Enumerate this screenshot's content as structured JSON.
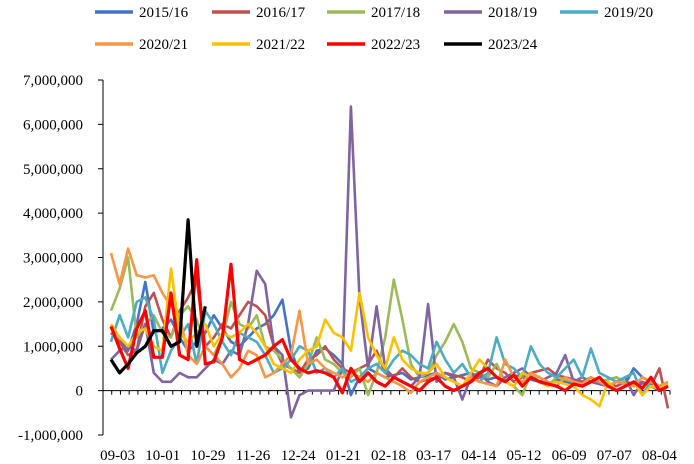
{
  "chart_data": {
    "type": "line",
    "title": "",
    "xlabel": "",
    "ylabel": "",
    "ylim": [
      -1000000,
      7000000
    ],
    "yticks": [
      -1000000,
      0,
      1000000,
      2000000,
      3000000,
      4000000,
      5000000,
      6000000,
      7000000
    ],
    "ytick_labels": [
      "-1,000,000",
      "0",
      "1,000,000",
      "2,000,000",
      "3,000,000",
      "4,000,000",
      "5,000,000",
      "6,000,000",
      "7,000,000"
    ],
    "xtick_labels": [
      "09-03",
      "10-01",
      "10-29",
      "11-26",
      "12-24",
      "01-21",
      "02-18",
      "03-17",
      "04-14",
      "05-12",
      "06-09",
      "07-07",
      "08-04"
    ],
    "legend_position": "top",
    "grid": false,
    "series": [
      {
        "name": "2015/16",
        "color": "#4472C4",
        "values": [
          1450000,
          1200000,
          900000,
          1500000,
          2450000,
          1300000,
          1400000,
          1600000,
          1200000,
          900000,
          1100000,
          1300000,
          1700000,
          1400000,
          1100000,
          1000000,
          1200000,
          1400000,
          1500000,
          1700000,
          2050000,
          900000,
          400000,
          500000,
          900000,
          950000,
          800000,
          600000,
          -100000,
          300000,
          500000,
          400000,
          300000,
          350000,
          400000,
          250000,
          300000,
          350000,
          400000,
          250000,
          300000,
          350000,
          400000,
          300000,
          250000,
          300000,
          200000,
          350000,
          300000,
          250000,
          200000,
          150000,
          250000,
          200000,
          150000,
          100000,
          200000,
          150000,
          100000,
          200000,
          150000,
          500000,
          300000,
          200000,
          100000,
          150000
        ]
      },
      {
        "name": "2016/17",
        "color": "#C0504D",
        "values": [
          1300000,
          1100000,
          800000,
          900000,
          1900000,
          2200000,
          1600000,
          1200000,
          1800000,
          2100000,
          2500000,
          1000000,
          1200000,
          1500000,
          1400000,
          1700000,
          2000000,
          1900000,
          1700000,
          1000000,
          600000,
          500000,
          400000,
          700000,
          800000,
          1000000,
          700000,
          500000,
          400000,
          500000,
          600000,
          900000,
          400000,
          300000,
          500000,
          300000,
          200000,
          250000,
          300000,
          400000,
          350000,
          300000,
          200000,
          300000,
          700000,
          500000,
          400000,
          200000,
          300000,
          400000,
          450000,
          500000,
          350000,
          300000,
          250000,
          200000,
          300000,
          200000,
          150000,
          100000,
          200000,
          150000,
          200000,
          100000,
          500000,
          -400000
        ]
      },
      {
        "name": "2017/18",
        "color": "#9BBB59",
        "values": [
          1800000,
          2300000,
          3000000,
          1200000,
          1500000,
          1700000,
          1300000,
          1200000,
          1700000,
          1900000,
          1600000,
          1000000,
          800000,
          1200000,
          2000000,
          1500000,
          1400000,
          1700000,
          1000000,
          900000,
          700000,
          500000,
          300000,
          600000,
          1200000,
          700000,
          600000,
          400000,
          300000,
          500000,
          -100000,
          400000,
          1200000,
          2500000,
          1600000,
          600000,
          300000,
          400000,
          800000,
          1100000,
          1500000,
          1100000,
          500000,
          400000,
          300000,
          600000,
          200000,
          100000,
          -100000,
          400000,
          200000,
          100000,
          300000,
          250000,
          200000,
          150000,
          300000,
          200000,
          250000,
          300000,
          200000,
          100000,
          150000,
          200000,
          100000,
          150000
        ]
      },
      {
        "name": "2018/19",
        "color": "#8064A2",
        "values": [
          700000,
          900000,
          1000000,
          900000,
          1500000,
          400000,
          200000,
          200000,
          400000,
          300000,
          300000,
          500000,
          700000,
          600000,
          900000,
          800000,
          1500000,
          2700000,
          2400000,
          1000000,
          800000,
          -600000,
          -100000,
          0,
          0,
          0,
          0,
          500000,
          6400000,
          2100000,
          500000,
          1900000,
          500000,
          300000,
          200000,
          100000,
          300000,
          1950000,
          200000,
          400000,
          300000,
          -200000,
          300000,
          400000,
          200000,
          100000,
          300000,
          400000,
          500000,
          300000,
          200000,
          300000,
          400000,
          800000,
          200000,
          300000,
          200000,
          150000,
          100000,
          200000,
          300000,
          -100000,
          200000,
          100000,
          0,
          100000
        ]
      },
      {
        "name": "2019/20",
        "color": "#4BACC6",
        "values": [
          1100000,
          1700000,
          1200000,
          2000000,
          2100000,
          1600000,
          400000,
          900000,
          1200000,
          1500000,
          600000,
          1800000,
          1500000,
          1100000,
          800000,
          1300000,
          1200000,
          1100000,
          800000,
          400000,
          500000,
          700000,
          1000000,
          900000,
          400000,
          500000,
          300000,
          500000,
          200000,
          300000,
          500000,
          600000,
          400000,
          700000,
          900000,
          800000,
          600000,
          500000,
          1100000,
          700000,
          400000,
          600000,
          300000,
          200000,
          400000,
          1200000,
          600000,
          500000,
          300000,
          1000000,
          600000,
          400000,
          300000,
          500000,
          700000,
          300000,
          950000,
          400000,
          300000,
          200000,
          300000,
          400000,
          -100000,
          200000,
          100000,
          150000
        ]
      },
      {
        "name": "2020/21",
        "color": "#F79646",
        "values": [
          3100000,
          2400000,
          3200000,
          2600000,
          2550000,
          2600000,
          2200000,
          1900000,
          1700000,
          800000,
          600000,
          1000000,
          800000,
          600000,
          300000,
          500000,
          900000,
          800000,
          300000,
          400000,
          600000,
          800000,
          1800000,
          600000,
          700000,
          500000,
          400000,
          300000,
          400000,
          300000,
          200000,
          400000,
          300000,
          200000,
          100000,
          -50000,
          200000,
          300000,
          400000,
          300000,
          200000,
          100000,
          300000,
          200000,
          150000,
          100000,
          700000,
          300000,
          200000,
          400000,
          300000,
          200000,
          100000,
          300000,
          200000,
          150000,
          300000,
          200000,
          100000,
          200000,
          150000,
          100000,
          300000,
          200000,
          100000,
          200000
        ]
      },
      {
        "name": "2021/22",
        "color": "#FFC000",
        "values": [
          1500000,
          1200000,
          1000000,
          1300000,
          1400000,
          1000000,
          900000,
          2750000,
          1300000,
          1100000,
          1300000,
          1500000,
          1000000,
          1300000,
          1200000,
          1300000,
          1500000,
          1300000,
          1000000,
          600000,
          500000,
          400000,
          700000,
          900000,
          1000000,
          1600000,
          1300000,
          1200000,
          900000,
          2200000,
          1200000,
          800000,
          500000,
          1200000,
          700000,
          500000,
          400000,
          400000,
          600000,
          300000,
          200000,
          100000,
          400000,
          700000,
          500000,
          300000,
          200000,
          100000,
          400000,
          300000,
          200000,
          100000,
          200000,
          150000,
          100000,
          -100000,
          -200000,
          -350000,
          200000,
          0,
          100000,
          200000,
          -100000,
          100000,
          50000,
          150000
        ]
      },
      {
        "name": "2022/23",
        "color": "#FF0000",
        "values": [
          1450000,
          950000,
          500000,
          1400000,
          1800000,
          750000,
          750000,
          2200000,
          800000,
          700000,
          2950000,
          600000,
          650000,
          1200000,
          2850000,
          700000,
          600000,
          700000,
          800000,
          1000000,
          1150000,
          700000,
          500000,
          400000,
          450000,
          400000,
          300000,
          -50000,
          500000,
          200000,
          400000,
          200000,
          100000,
          300000,
          200000,
          100000,
          0,
          200000,
          300000,
          100000,
          0,
          100000,
          200000,
          400000,
          500000,
          300000,
          200000,
          350000,
          100000,
          300000,
          200000,
          150000,
          100000,
          0,
          150000,
          100000,
          200000,
          300000,
          100000,
          0,
          100000,
          200000,
          50000,
          300000,
          0,
          100000
        ]
      },
      {
        "name": "2023/24",
        "color": "#000000",
        "values": [
          700000,
          400000,
          600000,
          850000,
          1000000,
          1350000,
          1350000,
          1000000,
          1100000,
          3850000,
          1000000,
          1900000
        ]
      }
    ]
  }
}
